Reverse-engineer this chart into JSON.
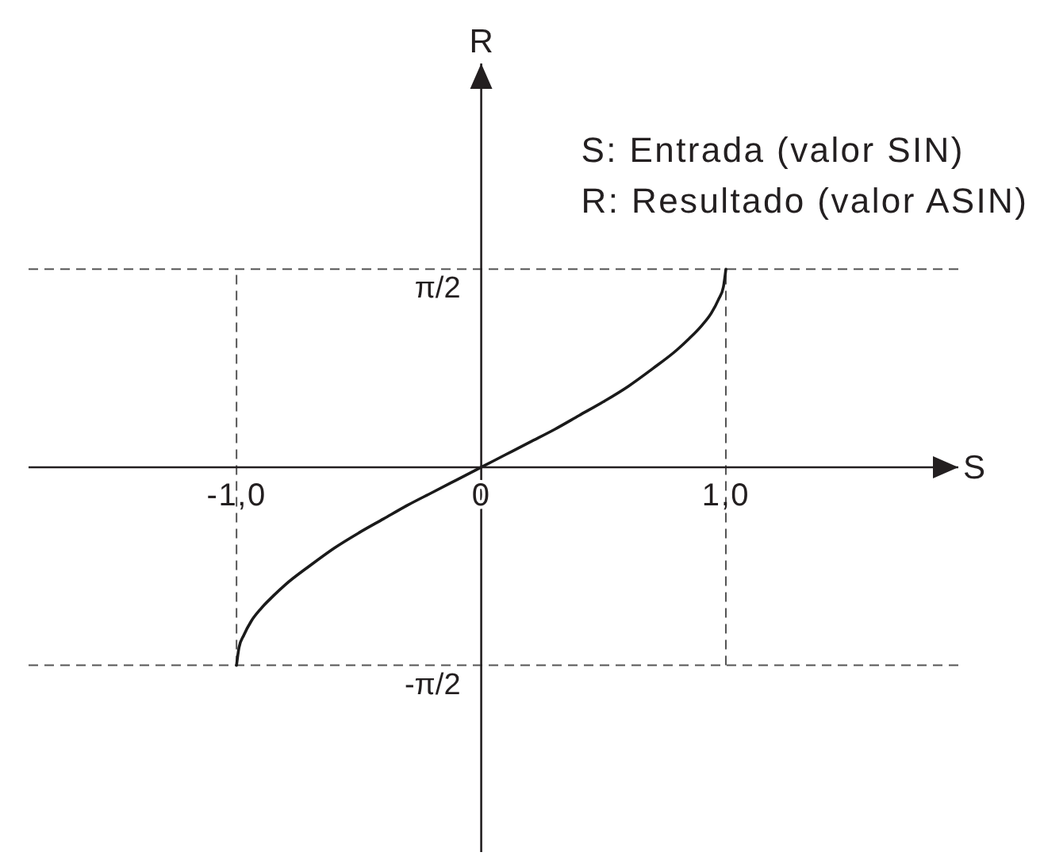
{
  "chart_data": {
    "type": "line",
    "xlabel": "S",
    "ylabel": "R",
    "annotations": [
      "S: Entrada (valor SIN)",
      "R: Resultado (valor ASIN)"
    ],
    "x": [
      -1,
      -0.99,
      -0.97,
      -0.94,
      -0.9,
      -0.85,
      -0.8,
      -0.7,
      -0.6,
      -0.5,
      -0.4,
      -0.3,
      -0.2,
      -0.1,
      0,
      0.1,
      0.2,
      0.3,
      0.4,
      0.5,
      0.6,
      0.7,
      0.8,
      0.85,
      0.9,
      0.94,
      0.97,
      0.99,
      1
    ],
    "series": [
      {
        "color": "#1a1a1a",
        "values": [
          -1.57,
          -1.43,
          -1.33,
          -1.22,
          -1.12,
          -1.02,
          -0.93,
          -0.78,
          -0.64,
          -0.52,
          -0.41,
          -0.3,
          -0.2,
          -0.1,
          0,
          0.1,
          0.2,
          0.3,
          0.41,
          0.52,
          0.64,
          0.78,
          0.93,
          1.02,
          1.12,
          1.22,
          1.33,
          1.43,
          1.57
        ]
      }
    ],
    "xlim": [
      -1.85,
      1.95
    ],
    "ylim": [
      -3.05,
      3.2
    ],
    "xticks": [
      {
        "value": -1,
        "label": "-1,0"
      },
      {
        "value": 0,
        "label": "0"
      },
      {
        "value": 1,
        "label": "1,0"
      }
    ],
    "yticks": [
      {
        "value": 1.57,
        "label": "π/2"
      },
      {
        "value": -1.57,
        "label": "-π/2"
      }
    ],
    "ref_lines": [
      {
        "axis": "y",
        "value": 1.57,
        "color": "#555555",
        "line_style": "dashed"
      },
      {
        "axis": "y",
        "value": -1.57,
        "color": "#555555",
        "line_style": "dashed"
      },
      {
        "axis": "x",
        "value": -1,
        "color": "#555555",
        "line_style": "dashed"
      },
      {
        "axis": "x",
        "value": 1,
        "color": "#555555",
        "line_style": "dashed"
      }
    ]
  }
}
